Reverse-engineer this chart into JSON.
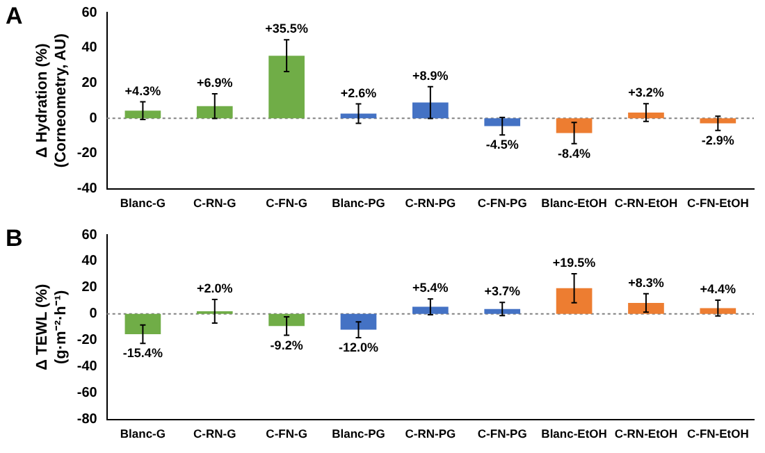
{
  "chart_data": [
    {
      "type": "bar",
      "ylabel": "Δ Hydration (%)\n(Corneometry, AU)",
      "annotations": [
        "A"
      ],
      "categories": [
        "Blanc-G",
        "C-RN-G",
        "C-FN-G",
        "Blanc-PG",
        "C-RN-PG",
        "C-FN-PG",
        "Blanc-EtOH",
        "C-RN-EtOH",
        "C-FN-EtOH"
      ],
      "values": [
        4.3,
        6.9,
        35.5,
        2.6,
        8.9,
        -4.5,
        -8.4,
        3.2,
        -2.9
      ],
      "errors": [
        5,
        7,
        9,
        5.5,
        9,
        5,
        6,
        5,
        4
      ],
      "value_labels": [
        "+4.3%",
        "+6.9%",
        "+35.5%",
        "+2.6%",
        "+8.9%",
        "-4.5%",
        "-8.4%",
        "+3.2%",
        "-2.9%"
      ],
      "colors": [
        "#70ad47",
        "#70ad47",
        "#70ad47",
        "#4472c4",
        "#4472c4",
        "#4472c4",
        "#ed7d31",
        "#ed7d31",
        "#ed7d31"
      ],
      "ylim": [
        -40,
        60
      ],
      "yticks": [
        -40,
        -20,
        0,
        20,
        40,
        60
      ],
      "grid": false,
      "legend": false,
      "ref_lines": [
        {
          "axis": "y",
          "value": 0,
          "color": "#808080",
          "line_style": "dotted"
        }
      ]
    },
    {
      "type": "bar",
      "ylabel": "Δ TEWL (%)\n(g·m⁻²·h⁻¹)",
      "annotations": [
        "B"
      ],
      "categories": [
        "Blanc-G",
        "C-RN-G",
        "C-FN-G",
        "Blanc-PG",
        "C-RN-PG",
        "C-FN-PG",
        "Blanc-EtOH",
        "C-RN-EtOH",
        "C-FN-EtOH"
      ],
      "values": [
        -15.4,
        2.0,
        -9.2,
        -12.0,
        5.4,
        3.7,
        19.5,
        8.3,
        4.4
      ],
      "errors": [
        7,
        9,
        7,
        6,
        6,
        5,
        11,
        7,
        6
      ],
      "value_labels": [
        "-15.4%",
        "+2.0%",
        "-9.2%",
        "-12.0%",
        "+5.4%",
        "+3.7%",
        "+19.5%",
        "+8.3%",
        "+4.4%"
      ],
      "colors": [
        "#70ad47",
        "#70ad47",
        "#70ad47",
        "#4472c4",
        "#4472c4",
        "#4472c4",
        "#ed7d31",
        "#ed7d31",
        "#ed7d31"
      ],
      "ylim": [
        -80,
        60
      ],
      "yticks": [
        -80,
        -60,
        -40,
        -20,
        0,
        20,
        40,
        60
      ],
      "grid": false,
      "legend": false,
      "ref_lines": [
        {
          "axis": "y",
          "value": 0,
          "color": "#808080",
          "line_style": "dotted"
        }
      ]
    }
  ]
}
